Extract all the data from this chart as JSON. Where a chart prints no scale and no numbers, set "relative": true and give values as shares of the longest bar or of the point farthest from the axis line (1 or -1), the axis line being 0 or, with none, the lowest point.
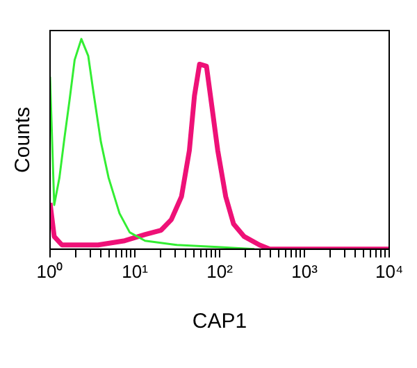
{
  "chart_data": {
    "type": "line",
    "xlabel": "CAP1",
    "ylabel": "Counts",
    "relative": true,
    "log": "x",
    "xlim": [
      1,
      10000
    ],
    "xticks": [
      {
        "value": 1,
        "label": "10⁰"
      },
      {
        "value": 2,
        "label": null
      },
      {
        "value": 3,
        "label": null
      },
      {
        "value": 4,
        "label": null
      },
      {
        "value": 5,
        "label": null
      },
      {
        "value": 6,
        "label": null
      },
      {
        "value": 7,
        "label": null
      },
      {
        "value": 8,
        "label": null
      },
      {
        "value": 9,
        "label": null
      },
      {
        "value": 10,
        "label": "10¹"
      },
      {
        "value": 20,
        "label": null
      },
      {
        "value": 30,
        "label": null
      },
      {
        "value": 40,
        "label": null
      },
      {
        "value": 50,
        "label": null
      },
      {
        "value": 60,
        "label": null
      },
      {
        "value": 70,
        "label": null
      },
      {
        "value": 80,
        "label": null
      },
      {
        "value": 90,
        "label": null
      },
      {
        "value": 100,
        "label": "10²"
      },
      {
        "value": 200,
        "label": null
      },
      {
        "value": 300,
        "label": null
      },
      {
        "value": 400,
        "label": null
      },
      {
        "value": 500,
        "label": null
      },
      {
        "value": 600,
        "label": null
      },
      {
        "value": 700,
        "label": null
      },
      {
        "value": 800,
        "label": null
      },
      {
        "value": 900,
        "label": null
      },
      {
        "value": 1000,
        "label": "10³"
      },
      {
        "value": 2000,
        "label": null
      },
      {
        "value": 3000,
        "label": null
      },
      {
        "value": 4000,
        "label": null
      },
      {
        "value": 5000,
        "label": null
      },
      {
        "value": 6000,
        "label": null
      },
      {
        "value": 7000,
        "label": null
      },
      {
        "value": 8000,
        "label": null
      },
      {
        "value": 9000,
        "label": null
      },
      {
        "value": 10000,
        "label": "10⁴"
      }
    ],
    "grid": false,
    "legend": false,
    "marker": "none",
    "line_style": "solid",
    "series": [
      {
        "color": "#33ee33",
        "x": [
          1,
          1.12,
          1.29,
          1.48,
          1.7,
          1.95,
          2.34,
          2.82,
          3.24,
          3.98,
          4.9,
          6.6,
          8.7,
          13.2,
          31,
          95,
          257
        ],
        "values": [
          0.82,
          0.21,
          0.34,
          0.53,
          0.71,
          0.9,
          1,
          0.92,
          0.75,
          0.51,
          0.34,
          0.17,
          0.08,
          0.04,
          0.02,
          0.01,
          0
        ]
      },
      {
        "color": "#ee1177",
        "x": [
          1,
          1.12,
          1.38,
          3.7,
          7.6,
          13.3,
          20.4,
          26.9,
          35.5,
          44,
          50.5,
          58,
          70,
          81,
          95,
          118,
          146,
          195,
          295,
          390,
          10000
        ],
        "values": [
          0.22,
          0.06,
          0.02,
          0.02,
          0.04,
          0.07,
          0.09,
          0.14,
          0.25,
          0.47,
          0.73,
          0.88,
          0.87,
          0.68,
          0.47,
          0.25,
          0.12,
          0.06,
          0.02,
          0,
          0
        ]
      }
    ]
  }
}
